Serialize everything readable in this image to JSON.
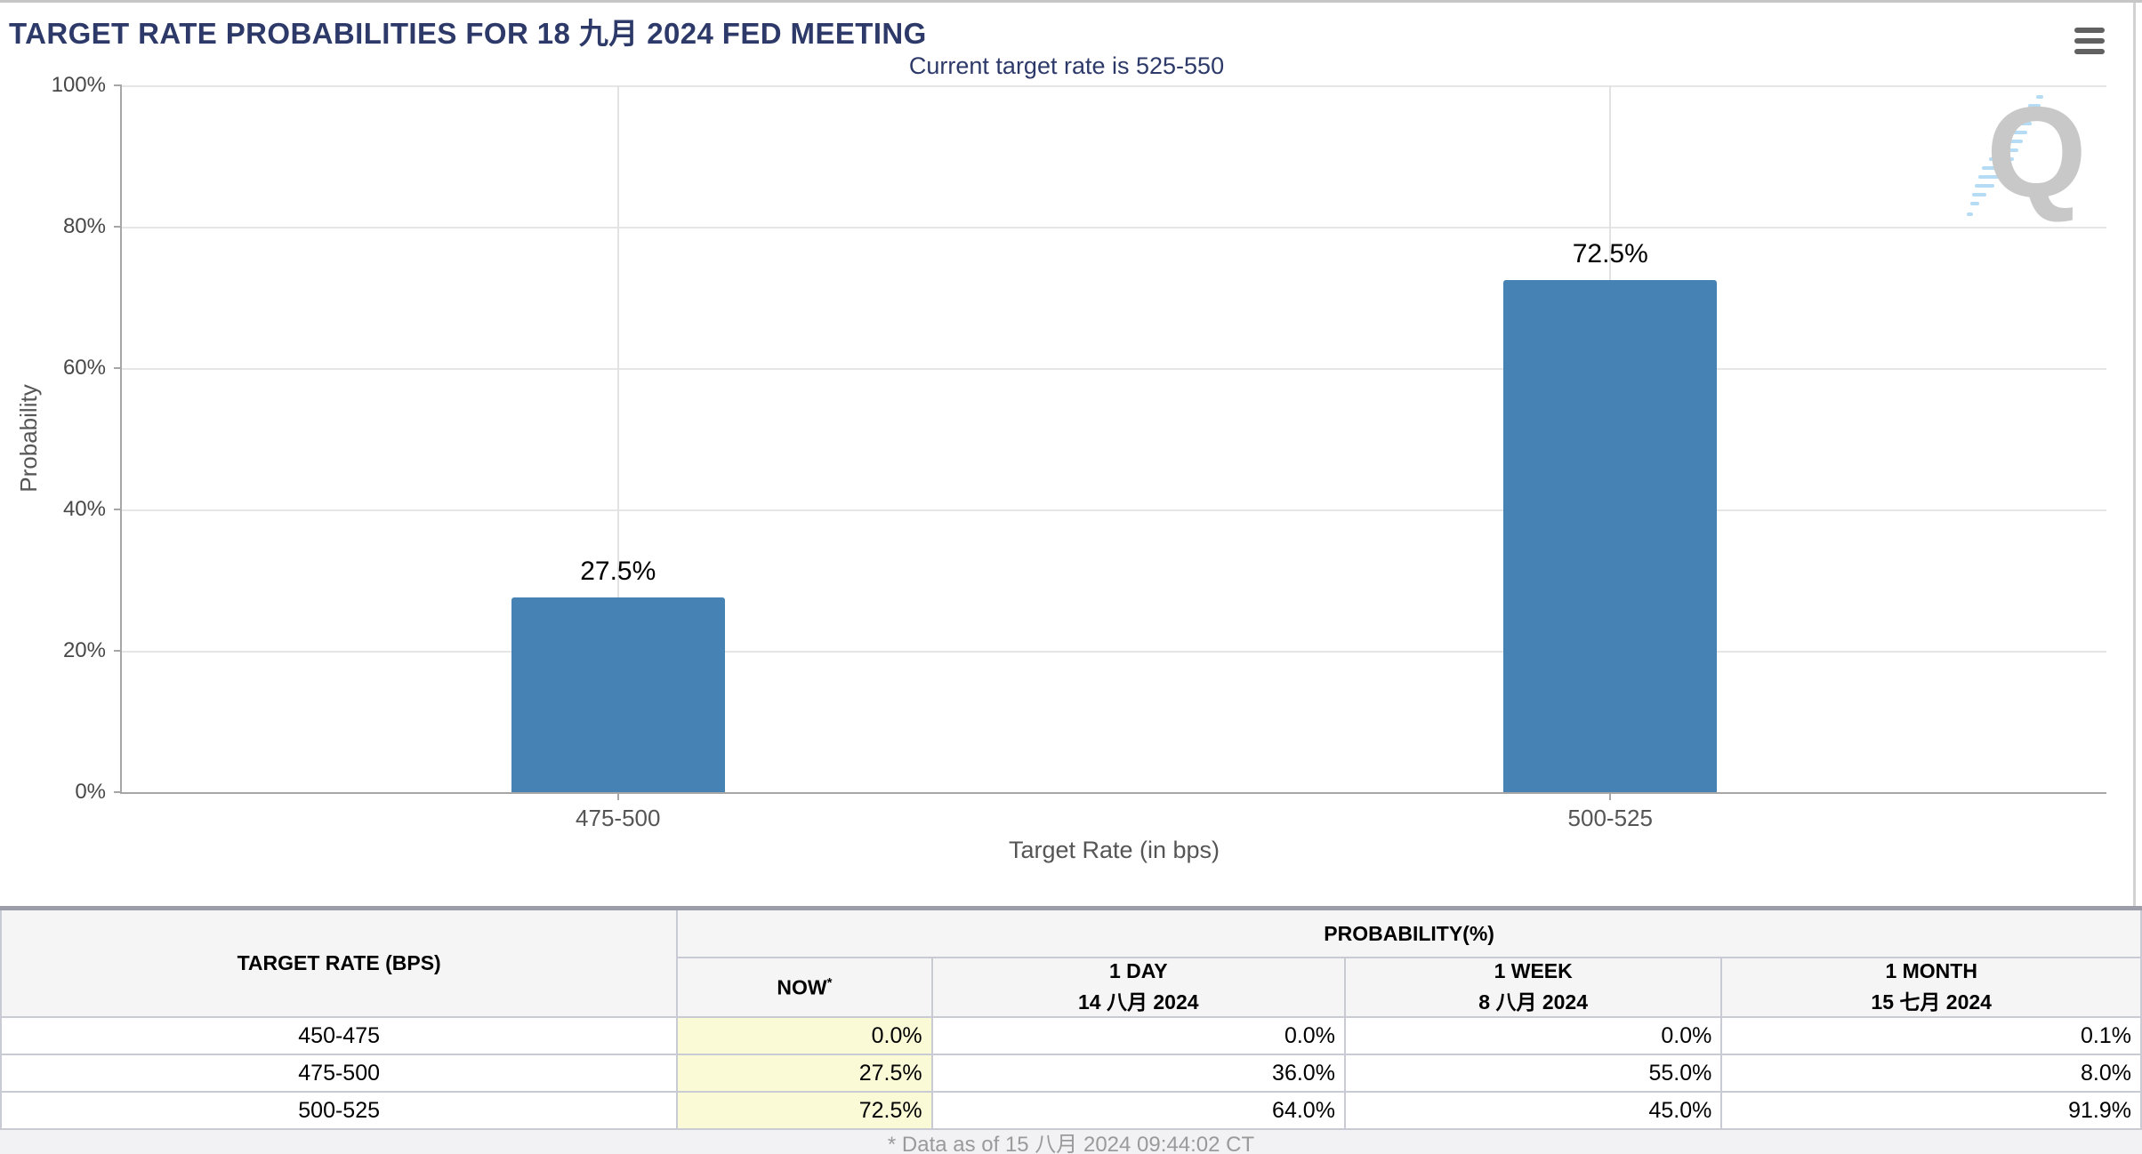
{
  "page": {
    "title": "TARGET RATE PROBABILITIES FOR 18 九月 2024 FED MEETING"
  },
  "chart": {
    "subtitle": "Current target rate is 525-550",
    "y_axis_title": "Probability",
    "x_axis_title": "Target Rate (in bps)",
    "y_ticks": [
      "100%",
      "80%",
      "60%",
      "40%",
      "20%",
      "0%"
    ],
    "menu_icon": "hamburger-export-menu-icon",
    "watermark_letter": "Q"
  },
  "chart_data": {
    "type": "bar",
    "title": "TARGET RATE PROBABILITIES FOR 18 九月 2024 FED MEETING",
    "subtitle": "Current target rate is 525-550",
    "categories": [
      "475-500",
      "500-525"
    ],
    "values": [
      27.5,
      72.5
    ],
    "data_labels": [
      "27.5%",
      "72.5%"
    ],
    "xlabel": "Target Rate (in bps)",
    "ylabel": "Probability",
    "ylim": [
      0,
      100
    ],
    "ytick_interval": 20,
    "grid": true,
    "legend": false,
    "bar_color": "#4682b4"
  },
  "table": {
    "col1_header": "TARGET RATE (BPS)",
    "group_header": "PROBABILITY(%)",
    "sub_headers": [
      {
        "line1": "NOW",
        "sup": "*",
        "line2": ""
      },
      {
        "line1": "1 DAY",
        "sup": "",
        "line2": "14 八月 2024"
      },
      {
        "line1": "1 WEEK",
        "sup": "",
        "line2": "8 八月 2024"
      },
      {
        "line1": "1 MONTH",
        "sup": "",
        "line2": "15 七月 2024"
      }
    ],
    "rows": [
      {
        "rate": "450-475",
        "now": "0.0%",
        "one_day": "0.0%",
        "one_week": "0.0%",
        "one_month": "0.1%"
      },
      {
        "rate": "475-500",
        "now": "27.5%",
        "one_day": "36.0%",
        "one_week": "55.0%",
        "one_month": "8.0%"
      },
      {
        "rate": "500-525",
        "now": "72.5%",
        "one_day": "64.0%",
        "one_week": "45.0%",
        "one_month": "91.9%"
      }
    ],
    "now_highlight_color": "#fafad7"
  },
  "footer": {
    "note": "* Data as of 15 八月 2024 09:44:02 CT"
  },
  "colors": {
    "title_navy": "#2d3a69",
    "bar_blue": "#4682b4",
    "gridline": "#e6e6e6"
  }
}
